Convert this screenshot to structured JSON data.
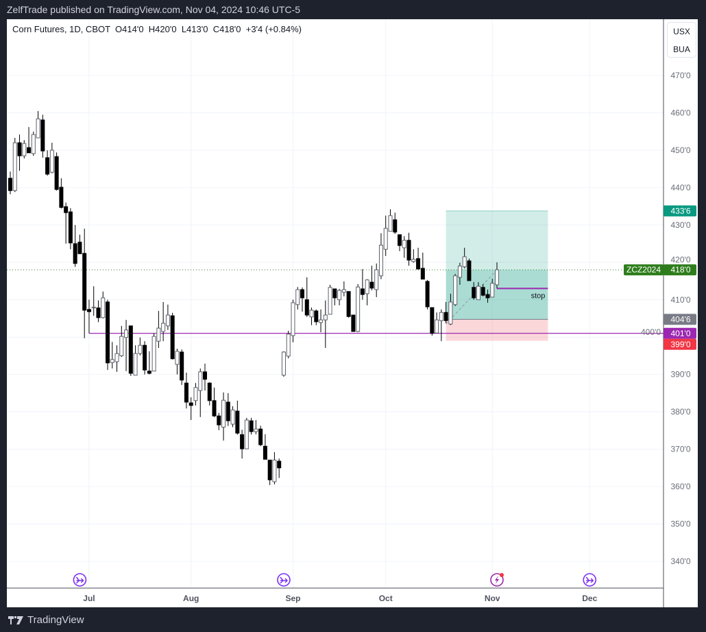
{
  "published": "ZelfTrade published on TradingView.com, Nov 04, 2024 10:46 UTC-5",
  "legend": {
    "symbol": "Corn Futures, 1D, CBOT",
    "open": "O414'0",
    "high": "H420'0",
    "low": "L413'0",
    "close": "C418'0",
    "change": "+3'4 (+0.84%)"
  },
  "units": {
    "currency": "USX",
    "unit": "BUA"
  },
  "footer": {
    "brand": "TradingView"
  },
  "colors": {
    "bull_body": "#ffffff",
    "bull_border": "#5d606b",
    "bear_body": "#000000",
    "wick": "#000000",
    "support_line": "#9c27b0",
    "last_price": "#2e7d1c",
    "target": "#089981",
    "entry": "#787b86",
    "stop": "#f23645",
    "event_icon": "#7b2ff7",
    "earnings_icon": "#9c27b0"
  },
  "chart_data": {
    "type": "candlestick",
    "symbol": "ZCZ2024",
    "ylim": [
      333,
      478
    ],
    "grid": true,
    "price_ticks": [
      {
        "v": 340,
        "label": "340'0"
      },
      {
        "v": 350,
        "label": "350'0"
      },
      {
        "v": 360,
        "label": "360'0"
      },
      {
        "v": 370,
        "label": "370'0"
      },
      {
        "v": 380,
        "label": "380'0"
      },
      {
        "v": 390,
        "label": "390'0"
      },
      {
        "v": 400,
        "label": "400'0"
      },
      {
        "v": 410,
        "label": "410'0"
      },
      {
        "v": 420,
        "label": "420'0"
      },
      {
        "v": 430,
        "label": "430'0"
      },
      {
        "v": 440,
        "label": "440'0"
      },
      {
        "v": 450,
        "label": "450'0"
      },
      {
        "v": 460,
        "label": "460'0"
      },
      {
        "v": 470,
        "label": "470'0"
      }
    ],
    "time_ticks": [
      {
        "date": "2024-07-01",
        "label": "Jul"
      },
      {
        "date": "2024-08-01",
        "label": "Aug"
      },
      {
        "date": "2024-09-03",
        "label": "Sep"
      },
      {
        "date": "2024-10-01",
        "label": "Oct"
      },
      {
        "date": "2024-11-01",
        "label": "Nov"
      },
      {
        "date": "2024-12-02",
        "label": "Dec"
      }
    ],
    "candles": [
      [
        "2024-06-05",
        442.5,
        444.3,
        438.2,
        439.2
      ],
      [
        "2024-06-06",
        439.2,
        453.3,
        438.8,
        452
      ],
      [
        "2024-06-07",
        452,
        454.2,
        444.5,
        448.5
      ],
      [
        "2024-06-10",
        448.5,
        452.7,
        447.8,
        451.8
      ],
      [
        "2024-06-11",
        450.7,
        456.2,
        449.3,
        449.3
      ],
      [
        "2024-06-12",
        449.1,
        455,
        448.5,
        454.2
      ],
      [
        "2024-06-13",
        453.3,
        460.5,
        453.3,
        458.4
      ],
      [
        "2024-06-14",
        458.1,
        459.5,
        448,
        449.8
      ],
      [
        "2024-06-17",
        448,
        450,
        443.2,
        443.6
      ],
      [
        "2024-06-18",
        444.1,
        452,
        443.8,
        450
      ],
      [
        "2024-06-20",
        448.3,
        449.4,
        439.2,
        439.5
      ],
      [
        "2024-06-21",
        440.1,
        442.5,
        434.4,
        434.7
      ],
      [
        "2024-06-24",
        434.9,
        436,
        425,
        433.3
      ],
      [
        "2024-06-25",
        433.5,
        434.5,
        423.5,
        425.2
      ],
      [
        "2024-06-26",
        425,
        430,
        418.8,
        419.7
      ],
      [
        "2024-06-27",
        425.4,
        427.4,
        422.3,
        422.3
      ],
      [
        "2024-06-28",
        422.4,
        429,
        399.7,
        407.2
      ],
      [
        "2024-07-01",
        407.4,
        410,
        401,
        406.8
      ],
      [
        "2024-07-02",
        408,
        413.6,
        405.7,
        408
      ],
      [
        "2024-07-03",
        407.8,
        409.8,
        404,
        405.2
      ],
      [
        "2024-07-05",
        405.2,
        412.2,
        405,
        410.5
      ],
      [
        "2024-07-08",
        409.4,
        410,
        391.2,
        393.1
      ],
      [
        "2024-07-09",
        393.2,
        398.7,
        391.6,
        394
      ],
      [
        "2024-07-10",
        393.4,
        397.8,
        390.7,
        395.6
      ],
      [
        "2024-07-11",
        395,
        403,
        394.7,
        400.2
      ],
      [
        "2024-07-12",
        399.9,
        404.6,
        390.9,
        401.9
      ],
      [
        "2024-07-15",
        403,
        403,
        389.6,
        390.3
      ],
      [
        "2024-07-16",
        389.8,
        397.8,
        389.8,
        395.6
      ],
      [
        "2024-07-17",
        395.6,
        399.9,
        395.1,
        397.8
      ],
      [
        "2024-07-18",
        397.8,
        398.9,
        390,
        391.2
      ],
      [
        "2024-07-19",
        390.9,
        396.2,
        390,
        390.3
      ],
      [
        "2024-07-22",
        390.9,
        401,
        390.9,
        400.2
      ],
      [
        "2024-07-23",
        398.9,
        407,
        397.1,
        402.4
      ],
      [
        "2024-07-24",
        401.5,
        409.4,
        398.9,
        403.7
      ],
      [
        "2024-07-25",
        403,
        408.7,
        401.9,
        405.9
      ],
      [
        "2024-07-26",
        405.7,
        406.5,
        394,
        394.2
      ],
      [
        "2024-07-29",
        392.7,
        396.9,
        390,
        396.2
      ],
      [
        "2024-07-30",
        396,
        396.7,
        387.2,
        388.5
      ],
      [
        "2024-07-31",
        387.7,
        390.5,
        380.9,
        382.6
      ],
      [
        "2024-08-01",
        382.4,
        383.9,
        377.8,
        381.7
      ],
      [
        "2024-08-02",
        383,
        387.7,
        381.7,
        386.5
      ],
      [
        "2024-08-05",
        385.7,
        391.6,
        378.6,
        390.7
      ],
      [
        "2024-08-06",
        390.7,
        392.9,
        385.7,
        388.7
      ],
      [
        "2024-08-07",
        387.7,
        387.9,
        381.7,
        383
      ],
      [
        "2024-08-08",
        383,
        386.5,
        378.6,
        378.9
      ],
      [
        "2024-08-09",
        378.9,
        379.7,
        375.1,
        376.5
      ],
      [
        "2024-08-12",
        375.9,
        385.2,
        372.3,
        383.1
      ],
      [
        "2024-08-13",
        382.6,
        385,
        376.2,
        377.6
      ],
      [
        "2024-08-14",
        376.7,
        381.5,
        375.9,
        380.5
      ],
      [
        "2024-08-15",
        380.2,
        383,
        373.9,
        374.3
      ],
      [
        "2024-08-16",
        373.9,
        375.2,
        367.5,
        370.1
      ],
      [
        "2024-08-19",
        370.1,
        378.4,
        370.1,
        377.8
      ],
      [
        "2024-08-20",
        377.6,
        378.4,
        373.9,
        374.7
      ],
      [
        "2024-08-21",
        374.7,
        377.8,
        374,
        375.4
      ],
      [
        "2024-08-22",
        375.4,
        376.3,
        370.8,
        371.2
      ],
      [
        "2024-08-23",
        370.8,
        374,
        367.3,
        367.3
      ],
      [
        "2024-08-26",
        367.1,
        367.1,
        360.4,
        361.8
      ],
      [
        "2024-08-27",
        361.3,
        369.2,
        360.6,
        367.1
      ],
      [
        "2024-08-28",
        366.8,
        367.5,
        362.3,
        365
      ],
      [
        "2024-08-29",
        389.8,
        396.2,
        389.4,
        396
      ],
      [
        "2024-08-30",
        394.9,
        401.7,
        394.3,
        400.8
      ],
      [
        "2024-09-03",
        400.4,
        410,
        398.6,
        409.2
      ],
      [
        "2024-09-04",
        408.7,
        413.4,
        407.4,
        412.7
      ],
      [
        "2024-09-05",
        412.7,
        413.3,
        406.8,
        410.5
      ],
      [
        "2024-09-06",
        410,
        416,
        405.4,
        405.9
      ],
      [
        "2024-09-09",
        405.4,
        407.9,
        403.2,
        407.2
      ],
      [
        "2024-09-10",
        407,
        407.4,
        403.2,
        404.1
      ],
      [
        "2024-09-11",
        403.9,
        407.4,
        401.3,
        404.6
      ],
      [
        "2024-09-12",
        404.6,
        409.8,
        397.1,
        405.9
      ],
      [
        "2024-09-13",
        406.1,
        414,
        406.1,
        413.3
      ],
      [
        "2024-09-16",
        412.9,
        412.9,
        408.5,
        410.5
      ],
      [
        "2024-09-17",
        410,
        412.9,
        408.5,
        412.5
      ],
      [
        "2024-09-18",
        412,
        414.9,
        410.9,
        412.7
      ],
      [
        "2024-09-19",
        412.2,
        412.2,
        405.2,
        405.5
      ],
      [
        "2024-09-20",
        405.9,
        405.9,
        401.5,
        401.5
      ],
      [
        "2024-09-23",
        401.5,
        414.2,
        401.3,
        413.4
      ],
      [
        "2024-09-24",
        412.9,
        418.2,
        410,
        411.4
      ],
      [
        "2024-09-25",
        411.6,
        415.5,
        408.5,
        415.3
      ],
      [
        "2024-09-26",
        414.7,
        419.1,
        412.5,
        413.1
      ],
      [
        "2024-09-27",
        412.7,
        419.7,
        410.7,
        418
      ],
      [
        "2024-09-30",
        416.4,
        427.8,
        415.5,
        424.6
      ],
      [
        "2024-10-01",
        423.5,
        432.5,
        421.7,
        429.1
      ],
      [
        "2024-10-02",
        428.3,
        434.2,
        428.3,
        432.5
      ],
      [
        "2024-10-03",
        431.4,
        433.3,
        427.6,
        428.1
      ],
      [
        "2024-10-04",
        427.4,
        427.4,
        423,
        424.5
      ],
      [
        "2024-10-07",
        423.9,
        427,
        421.2,
        425.9
      ],
      [
        "2024-10-08",
        425.9,
        427.9,
        419.1,
        420.6
      ],
      [
        "2024-10-09",
        420.2,
        423.5,
        419.9,
        420.8
      ],
      [
        "2024-10-10",
        421,
        423.9,
        418.2,
        418.2
      ],
      [
        "2024-10-11",
        418.4,
        422.6,
        415.5,
        415.5
      ],
      [
        "2024-10-14",
        414.9,
        415.3,
        407.4,
        408.1
      ],
      [
        "2024-10-15",
        407.9,
        407.9,
        400.4,
        401
      ],
      [
        "2024-10-16",
        401.1,
        406.6,
        401.1,
        404.6
      ],
      [
        "2024-10-17",
        404.4,
        407.4,
        398.9,
        406.6
      ],
      [
        "2024-10-18",
        406.6,
        409.4,
        403.7,
        404.4
      ],
      [
        "2024-10-21",
        403.5,
        411.6,
        403.2,
        409.4
      ],
      [
        "2024-10-22",
        408.7,
        416.9,
        408.3,
        416.4
      ],
      [
        "2024-10-23",
        416,
        419.9,
        414,
        419
      ],
      [
        "2024-10-24",
        418.8,
        423.9,
        418.4,
        421.5
      ],
      [
        "2024-10-25",
        420.4,
        421,
        415.1,
        415.1
      ],
      [
        "2024-10-28",
        413.3,
        414.7,
        410,
        410.5
      ],
      [
        "2024-10-29",
        410,
        414.7,
        410,
        413.6
      ],
      [
        "2024-10-30",
        413.3,
        414.2,
        410.9,
        411.2
      ],
      [
        "2024-10-31",
        411.4,
        412.7,
        409.2,
        410.5
      ],
      [
        "2024-11-01",
        410.7,
        415.6,
        410.7,
        414.4
      ],
      [
        "2024-11-04",
        414,
        420,
        413,
        418
      ]
    ],
    "last_price": {
      "value": 418,
      "label": "418'0",
      "symbol_label": "ZCZ2024"
    },
    "support_line": {
      "value": 401,
      "label": "401'0",
      "from": "2024-07-01"
    },
    "long_position": {
      "from": "2024-10-18",
      "to": "2024-11-19",
      "entry": 404.75,
      "entry_label": "404'6",
      "target": 433.75,
      "target_label": "433'6",
      "stop": 399,
      "stop_label": "399'0"
    },
    "stop_line": {
      "value": 413,
      "from": "2024-11-04",
      "to": "2024-11-19",
      "label": "stop"
    },
    "trend_dashed": {
      "from": "2024-10-18",
      "from_value": 403.5,
      "to": "2024-11-04",
      "to_value": 418
    },
    "events": [
      {
        "date": "2024-06-27",
        "icon": "economic-event-icon"
      },
      {
        "date": "2024-08-29",
        "icon": "economic-event-icon"
      },
      {
        "date": "2024-11-04",
        "icon": "earnings-lightning-icon",
        "alert": true
      },
      {
        "date": "2024-12-02",
        "icon": "economic-event-icon"
      }
    ]
  }
}
